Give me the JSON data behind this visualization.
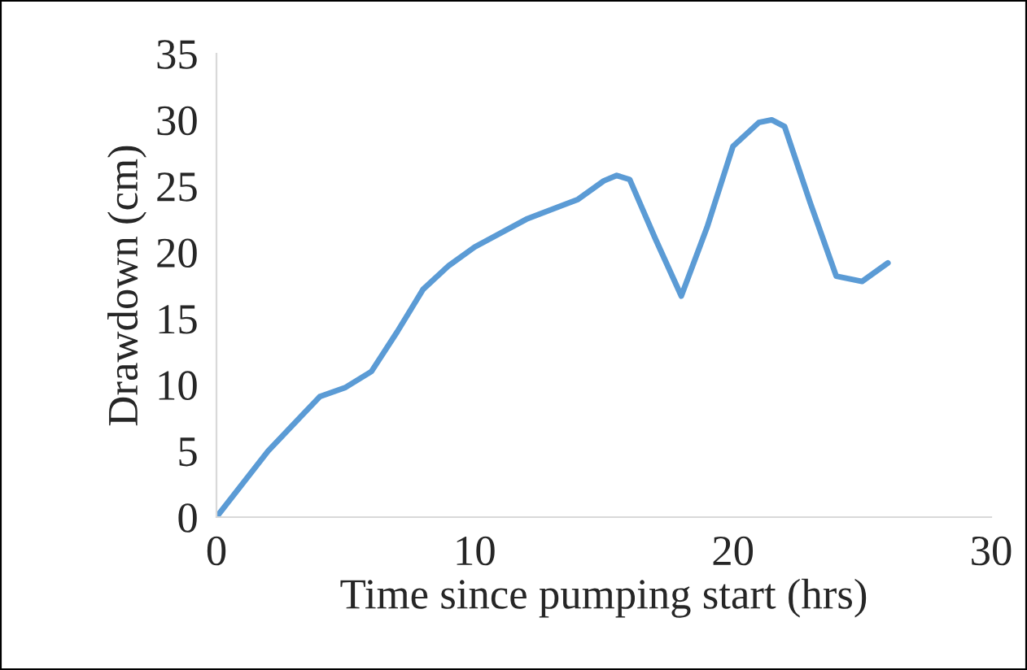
{
  "chart_data": {
    "type": "line",
    "xlabel": "Time since pumping start (hrs)",
    "ylabel": "Drawdown (cm)",
    "xlim": [
      0,
      30
    ],
    "xticks": [
      0,
      10,
      20,
      30
    ],
    "ylim": [
      0,
      35
    ],
    "yticks": [
      0,
      5,
      10,
      15,
      20,
      25,
      30,
      35
    ],
    "grid": false,
    "legend": false,
    "marker": "none",
    "line_style": "solid",
    "series": [
      {
        "color": "#5b9bd5",
        "x": [
          0,
          2,
          4,
          5,
          6,
          7,
          8,
          9,
          10,
          12,
          14,
          15,
          15.5,
          16,
          17,
          18,
          19,
          20,
          21,
          21.5,
          22,
          23,
          24,
          25,
          26
        ],
        "values": [
          0,
          5,
          9.1,
          9.8,
          11,
          14,
          17.2,
          19,
          20.4,
          22.5,
          24,
          25.4,
          25.8,
          25.5,
          21,
          16.7,
          21.9,
          28,
          29.8,
          30,
          29.5,
          23.7,
          18.2,
          17.8,
          19.2
        ]
      }
    ]
  }
}
